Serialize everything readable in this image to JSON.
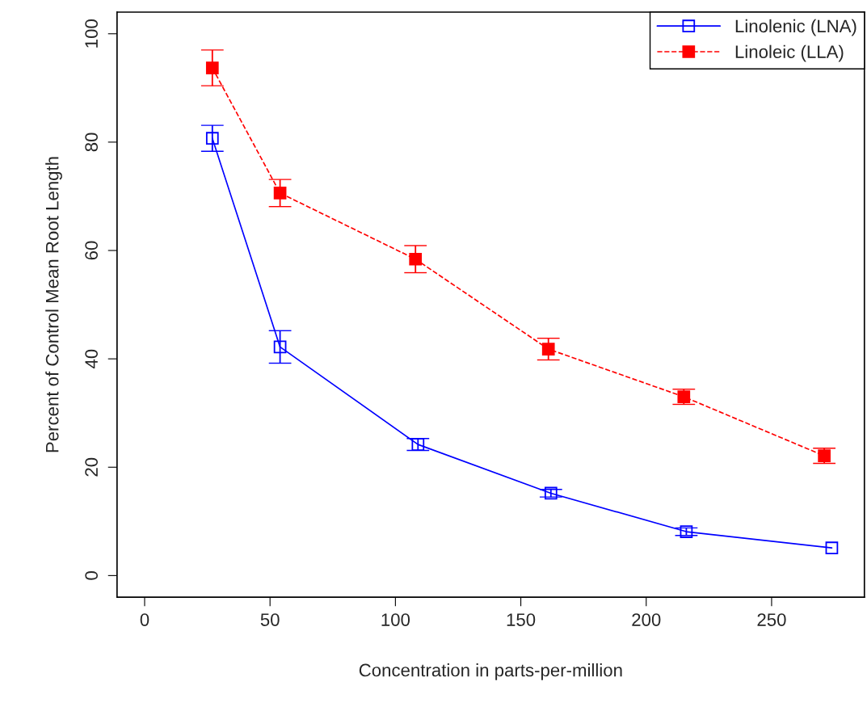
{
  "chart_data": {
    "type": "line",
    "xlabel": "Concentration in parts-per-million",
    "ylabel": "Percent of Control Mean Root Length",
    "xlim": [
      -11,
      287
    ],
    "ylim": [
      -4,
      104
    ],
    "xticks": [
      0,
      50,
      100,
      150,
      200,
      250
    ],
    "yticks": [
      0,
      20,
      40,
      60,
      80,
      100
    ],
    "grid": false,
    "legend": "top right",
    "series": [
      {
        "name": "Linolenic (LNA)",
        "color": "#0000ff",
        "marker": "square",
        "line_style": "solid",
        "x": [
          27,
          54,
          109,
          162,
          216,
          274
        ],
        "values": [
          80.7,
          42.2,
          24.2,
          15.2,
          8.1,
          5.1
        ],
        "errors": [
          2.4,
          3,
          1.1,
          0.7,
          0.7,
          null
        ]
      },
      {
        "name": "Linoleic (LLA)",
        "color": "#ff0000",
        "marker": "square",
        "line_style": "dashed",
        "x": [
          27,
          54,
          108,
          161,
          215,
          271
        ],
        "values": [
          93.7,
          70.6,
          58.4,
          41.8,
          33.0,
          22.1
        ],
        "errors": [
          3.3,
          2.5,
          2.5,
          2,
          1.4,
          1.4
        ]
      }
    ]
  }
}
